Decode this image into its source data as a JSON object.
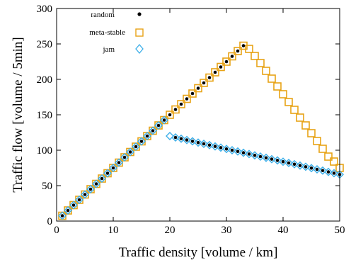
{
  "chart_data": {
    "type": "scatter",
    "xlabel": "Traffic density [volume / km]",
    "ylabel": "Traffic flow [volume / 5min]",
    "xlim": [
      0,
      50
    ],
    "ylim": [
      0,
      300
    ],
    "xticks": [
      0,
      10,
      20,
      30,
      40,
      50
    ],
    "yticks": [
      0,
      50,
      100,
      150,
      200,
      250,
      300
    ],
    "grid": false,
    "legend_position": "top-left",
    "series": [
      {
        "name": "random",
        "marker": "filled-circle",
        "color": "#000000",
        "points": [
          [
            1,
            7.5
          ],
          [
            2,
            15
          ],
          [
            3,
            22.5
          ],
          [
            4,
            30
          ],
          [
            5,
            37.5
          ],
          [
            6,
            45
          ],
          [
            7,
            52.5
          ],
          [
            8,
            60
          ],
          [
            9,
            67.5
          ],
          [
            10,
            75
          ],
          [
            11,
            82.5
          ],
          [
            12,
            90
          ],
          [
            13,
            97.5
          ],
          [
            14,
            105
          ],
          [
            15,
            112.5
          ],
          [
            16,
            120
          ],
          [
            17,
            127.5
          ],
          [
            18,
            135
          ],
          [
            19,
            142.5
          ],
          [
            20,
            150
          ],
          [
            21,
            157.5
          ],
          [
            22,
            165
          ],
          [
            23,
            172.5
          ],
          [
            24,
            180
          ],
          [
            25,
            187.5
          ],
          [
            26,
            195
          ],
          [
            27,
            202.5
          ],
          [
            28,
            210
          ],
          [
            29,
            217.5
          ],
          [
            30,
            225
          ],
          [
            31,
            232.5
          ],
          [
            32,
            240
          ],
          [
            33,
            247.5
          ],
          [
            21,
            118
          ],
          [
            22,
            116.2
          ],
          [
            23,
            114.4
          ],
          [
            24,
            112.6
          ],
          [
            25,
            110.8
          ],
          [
            26,
            109
          ],
          [
            27,
            107.2
          ],
          [
            28,
            105.4
          ],
          [
            29,
            103.6
          ],
          [
            30,
            101.8
          ],
          [
            31,
            100
          ],
          [
            32,
            98.2
          ],
          [
            33,
            96.4
          ],
          [
            34,
            94.6
          ],
          [
            35,
            92.8
          ],
          [
            36,
            91
          ],
          [
            37,
            89.2
          ],
          [
            38,
            87.4
          ],
          [
            39,
            85.6
          ],
          [
            40,
            83.8
          ],
          [
            41,
            82
          ],
          [
            42,
            80.2
          ],
          [
            43,
            78.4
          ],
          [
            44,
            76.6
          ],
          [
            45,
            74.8
          ],
          [
            46,
            73
          ],
          [
            47,
            71.2
          ],
          [
            48,
            69.4
          ],
          [
            49,
            67.6
          ],
          [
            50,
            65.8
          ]
        ]
      },
      {
        "name": "meta-stable",
        "marker": "open-square",
        "color": "#E8A317",
        "points": [
          [
            1,
            7.5
          ],
          [
            2,
            15
          ],
          [
            3,
            22.5
          ],
          [
            4,
            30
          ],
          [
            5,
            37.5
          ],
          [
            6,
            45
          ],
          [
            7,
            52.5
          ],
          [
            8,
            60
          ],
          [
            9,
            67.5
          ],
          [
            10,
            75
          ],
          [
            11,
            82.5
          ],
          [
            12,
            90
          ],
          [
            13,
            97.5
          ],
          [
            14,
            105
          ],
          [
            15,
            112.5
          ],
          [
            16,
            120
          ],
          [
            17,
            127.5
          ],
          [
            18,
            135
          ],
          [
            19,
            142.5
          ],
          [
            20,
            150
          ],
          [
            21,
            157.5
          ],
          [
            22,
            165
          ],
          [
            23,
            172.5
          ],
          [
            24,
            180
          ],
          [
            25,
            187.5
          ],
          [
            26,
            195
          ],
          [
            27,
            202.5
          ],
          [
            28,
            210
          ],
          [
            29,
            217.5
          ],
          [
            30,
            225
          ],
          [
            31,
            232.5
          ],
          [
            32,
            240
          ],
          [
            33,
            247.5
          ],
          [
            34,
            243
          ],
          [
            35,
            233
          ],
          [
            36,
            223
          ],
          [
            37,
            212
          ],
          [
            38,
            201
          ],
          [
            39,
            190
          ],
          [
            40,
            179
          ],
          [
            41,
            168
          ],
          [
            42,
            157
          ],
          [
            43,
            146
          ],
          [
            44,
            135
          ],
          [
            45,
            124
          ],
          [
            46,
            113
          ],
          [
            47,
            102
          ],
          [
            48,
            91
          ],
          [
            49,
            84
          ],
          [
            50,
            75
          ]
        ]
      },
      {
        "name": "jam",
        "marker": "open-diamond",
        "color": "#3BAEE8",
        "points": [
          [
            1,
            7.5
          ],
          [
            2,
            15
          ],
          [
            3,
            22.5
          ],
          [
            4,
            30
          ],
          [
            5,
            37.5
          ],
          [
            6,
            45
          ],
          [
            7,
            52.5
          ],
          [
            8,
            60
          ],
          [
            9,
            67.5
          ],
          [
            10,
            75
          ],
          [
            11,
            82.5
          ],
          [
            12,
            90
          ],
          [
            13,
            97.5
          ],
          [
            14,
            105
          ],
          [
            15,
            112.5
          ],
          [
            16,
            120
          ],
          [
            17,
            127.5
          ],
          [
            18,
            135
          ],
          [
            19,
            142.5
          ],
          [
            20,
            120
          ],
          [
            21,
            118
          ],
          [
            22,
            116.2
          ],
          [
            23,
            114.4
          ],
          [
            24,
            112.6
          ],
          [
            25,
            110.8
          ],
          [
            26,
            109
          ],
          [
            27,
            107.2
          ],
          [
            28,
            105.4
          ],
          [
            29,
            103.6
          ],
          [
            30,
            101.8
          ],
          [
            31,
            100
          ],
          [
            32,
            98.2
          ],
          [
            33,
            96.4
          ],
          [
            34,
            94.6
          ],
          [
            35,
            92.8
          ],
          [
            36,
            91
          ],
          [
            37,
            89.2
          ],
          [
            38,
            87.4
          ],
          [
            39,
            85.6
          ],
          [
            40,
            83.8
          ],
          [
            41,
            82
          ],
          [
            42,
            80.2
          ],
          [
            43,
            78.4
          ],
          [
            44,
            76.6
          ],
          [
            45,
            74.8
          ],
          [
            46,
            73
          ],
          [
            47,
            71.2
          ],
          [
            48,
            69.4
          ],
          [
            49,
            67.6
          ],
          [
            50,
            65.8
          ]
        ]
      }
    ]
  }
}
